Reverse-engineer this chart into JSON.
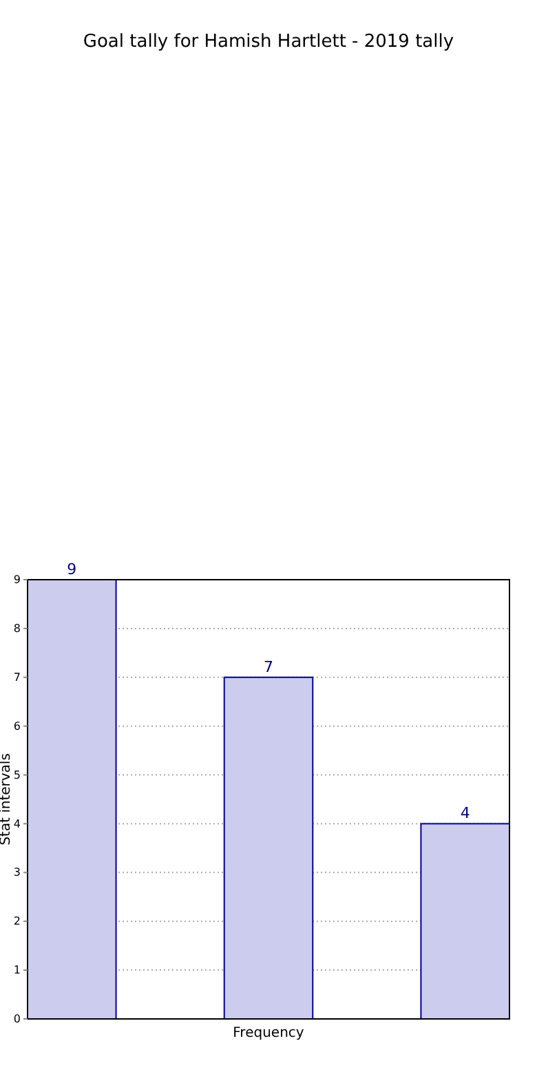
{
  "chart_data": {
    "type": "bar",
    "title": "Goal tally for Hamish Hartlett - 2019 tally",
    "xlabel": "Frequency",
    "ylabel": "Stat intervals",
    "categories": [
      null,
      null,
      null
    ],
    "values": [
      9,
      7,
      4
    ],
    "color": "#ccccee",
    "ylim": [
      0,
      9
    ],
    "yticks": [
      0,
      1,
      2,
      3,
      4,
      5,
      6,
      7,
      8,
      9
    ],
    "grid": "y",
    "data_labels": true
  }
}
